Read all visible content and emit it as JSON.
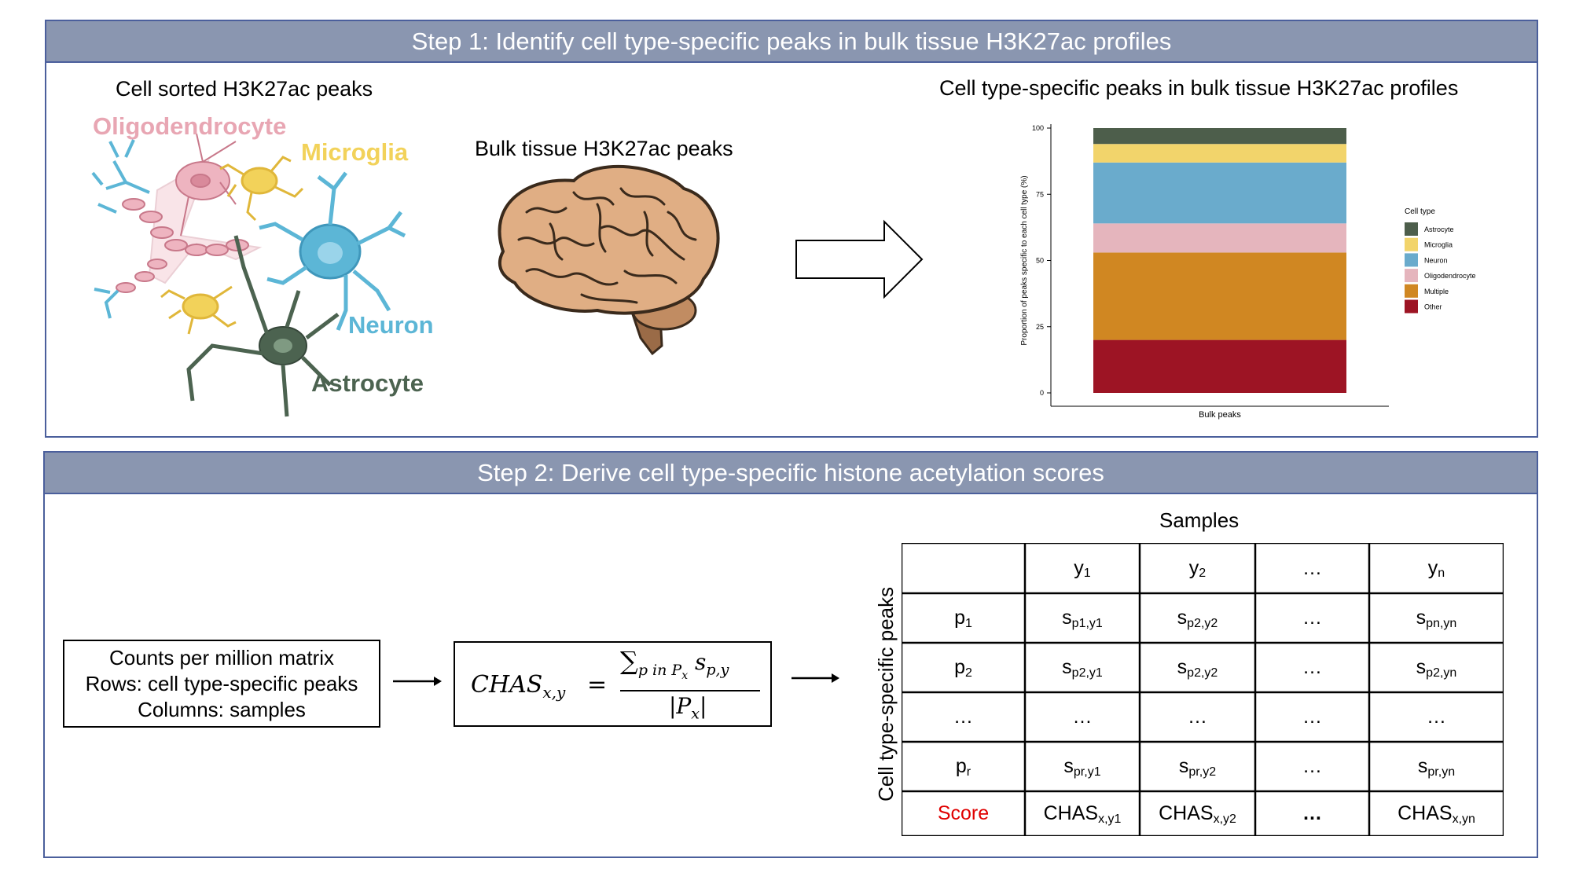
{
  "step1": {
    "title": "Step 1: Identify cell type-specific peaks in bulk tissue H3K27ac profiles",
    "cell_sorted_label": "Cell sorted H3K27ac peaks",
    "cell_labels": {
      "oligodendrocyte": "Oligodendrocyte",
      "microglia": "Microglia",
      "neuron": "Neuron",
      "astrocyte": "Astrocyte"
    },
    "bulk_label": "Bulk tissue H3K27ac peaks",
    "chart_title": "Cell type-specific peaks in bulk tissue H3K27ac profiles"
  },
  "chart_data": {
    "type": "bar",
    "stacked": true,
    "categories": [
      "Bulk peaks"
    ],
    "xlabel": "Bulk peaks",
    "ylabel": "Proportion of peaks specific to each cell type (%)",
    "ylim": [
      0,
      100
    ],
    "yticks": [
      "0",
      "25",
      "50",
      "75",
      "100"
    ],
    "legend_title": "Cell type",
    "legend_position": "right",
    "series": [
      {
        "name": "Other",
        "values": [
          20
        ],
        "color": "#9d1424"
      },
      {
        "name": "Multiple",
        "values": [
          33
        ],
        "color": "#d08722"
      },
      {
        "name": "Oligodendrocyte",
        "values": [
          11
        ],
        "color": "#e5b5bd"
      },
      {
        "name": "Neuron",
        "values": [
          23
        ],
        "color": "#6aabcc"
      },
      {
        "name": "Microglia",
        "values": [
          7
        ],
        "color": "#f2d46b"
      },
      {
        "name": "Astrocyte",
        "values": [
          6
        ],
        "color": "#4d5e4b"
      }
    ],
    "legend_order": [
      "Astrocyte",
      "Microglia",
      "Neuron",
      "Oligodendrocyte",
      "Multiple",
      "Other"
    ]
  },
  "step2": {
    "title": "Step 2: Derive cell type-specific histone acetylation scores",
    "matrix_box": [
      "Counts per million matrix",
      "Rows: cell type-specific peaks",
      "Columns: samples"
    ],
    "formula": {
      "lhs": "CHAS",
      "lhs_sub": "x,y",
      "equals": "=",
      "numerator_sum": "∑",
      "numerator_sub": "p in P",
      "numerator_sub_x": "x",
      "numerator_s": "s",
      "numerator_s_sub": "p,y",
      "denominator": "|P",
      "denominator_sub": "x",
      "denominator_close": "|"
    },
    "samples_label": "Samples",
    "rows_label": "Cell type-specific peaks",
    "table": {
      "header": [
        {
          "main": "",
          "sub": ""
        },
        {
          "main": "y",
          "sub": "1"
        },
        {
          "main": "y",
          "sub": "2"
        },
        {
          "main": "…",
          "sub": ""
        },
        {
          "main": "y",
          "sub": "n"
        }
      ],
      "rows": [
        [
          {
            "main": "p",
            "sub": "1"
          },
          {
            "main": "s",
            "sub": "p1,y1"
          },
          {
            "main": "s",
            "sub": "p2,y2"
          },
          {
            "main": "…",
            "sub": ""
          },
          {
            "main": "s",
            "sub": "pn,yn"
          }
        ],
        [
          {
            "main": "p",
            "sub": "2"
          },
          {
            "main": "s",
            "sub": "p2,y1"
          },
          {
            "main": "s",
            "sub": "p2,y2"
          },
          {
            "main": "…",
            "sub": ""
          },
          {
            "main": "s",
            "sub": "p2,yn"
          }
        ],
        [
          {
            "main": "…",
            "sub": ""
          },
          {
            "main": "…",
            "sub": ""
          },
          {
            "main": "…",
            "sub": ""
          },
          {
            "main": "…",
            "sub": ""
          },
          {
            "main": "…",
            "sub": ""
          }
        ],
        [
          {
            "main": "p",
            "sub": "r"
          },
          {
            "main": "s",
            "sub": "pr,y1"
          },
          {
            "main": "s",
            "sub": "pr,y2"
          },
          {
            "main": "…",
            "sub": ""
          },
          {
            "main": "s",
            "sub": "pr,yn"
          }
        ]
      ],
      "score_row": [
        {
          "main": "Score",
          "sub": ""
        },
        {
          "main": "CHAS",
          "sub": "x,y1"
        },
        {
          "main": "CHAS",
          "sub": "x,y2"
        },
        {
          "main": "…",
          "sub": ""
        },
        {
          "main": "CHAS",
          "sub": "x,yn"
        }
      ]
    }
  },
  "colors": {
    "header_bg": "#8a96b0",
    "border": "#4b5f9c",
    "oligodendrocyte": "#e8a6b3",
    "microglia": "#f2d25a",
    "neuron": "#5cb6d6",
    "astrocyte": "#4c6350",
    "score": "#e00000"
  }
}
